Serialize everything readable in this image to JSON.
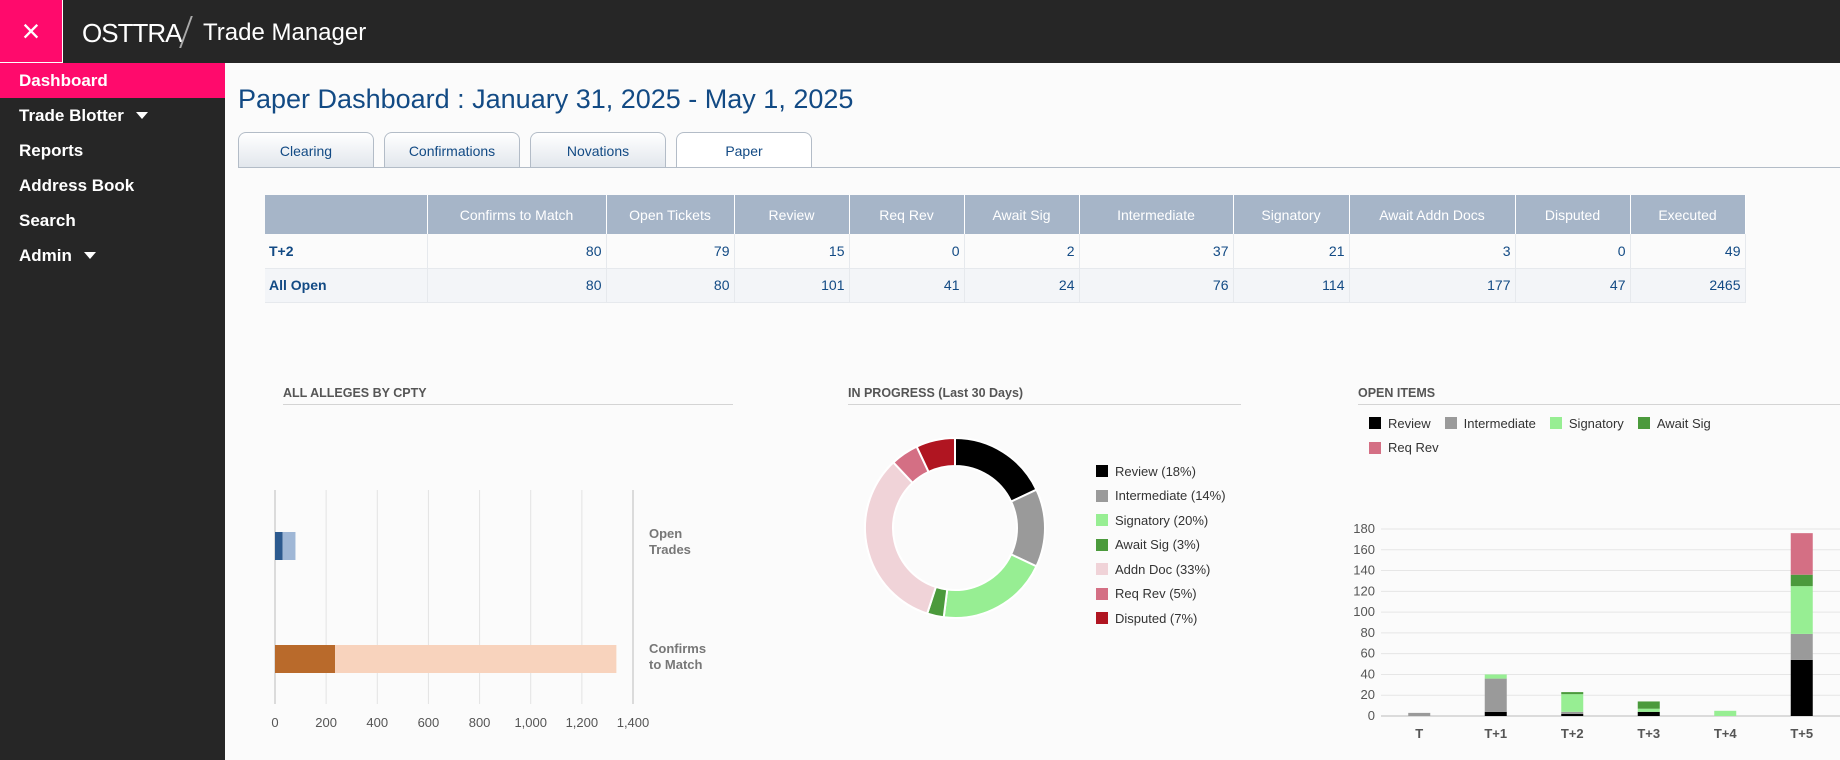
{
  "header": {
    "close_icon": "×",
    "logo_text": "OSTTRA",
    "app_title": "Trade Manager"
  },
  "sidebar": {
    "items": [
      {
        "label": "Dashboard",
        "active": true
      },
      {
        "label": "Trade Blotter",
        "has_caret": true
      },
      {
        "label": "Reports"
      },
      {
        "label": "Address Book"
      },
      {
        "label": "Search"
      },
      {
        "label": "Admin",
        "has_caret": true
      }
    ]
  },
  "page": {
    "title": "Paper Dashboard : January 31, 2025 - May 1, 2025",
    "tabs": [
      "Clearing",
      "Confirmations",
      "Novations",
      "Paper"
    ],
    "active_tab": "Paper"
  },
  "stats_table": {
    "columns": [
      "",
      "Confirms to Match",
      "Open Tickets",
      "Review",
      "Req Rev",
      "Await Sig",
      "Intermediate",
      "Signatory",
      "Await Addn Docs",
      "Disputed",
      "Executed"
    ],
    "rows": [
      {
        "label": "T+2",
        "values": [
          "80",
          "79",
          "15",
          "0",
          "2",
          "37",
          "21",
          "3",
          "0",
          "49"
        ]
      },
      {
        "label": "All Open",
        "values": [
          "80",
          "80",
          "101",
          "41",
          "24",
          "76",
          "114",
          "177",
          "47",
          "2465"
        ]
      }
    ]
  },
  "colors": {
    "brand_pink": "#ff0a6c",
    "nav_dark": "#262626",
    "title_blue": "#124a84",
    "header_gray_blue": "#a6b5c8"
  },
  "chart_data": [
    {
      "type": "bar",
      "orientation": "horizontal",
      "stacked": true,
      "title": "ALL ALLEGES BY CPTY",
      "categories": [
        "Open\nTrades",
        "Confirms\nto Match"
      ],
      "series": [
        {
          "color": "#2c5a8f",
          "values": [
            30,
            235
          ]
        },
        {
          "color": "#9fb7d6",
          "values": [
            50,
            1100
          ]
        }
      ],
      "category_colors": [
        [
          "#2c5a8f",
          "#9fb7d6"
        ],
        [
          "#b96a2b",
          "#f8d3bd"
        ]
      ],
      "totals": [
        80,
        1335
      ],
      "xlim": [
        0,
        1400
      ],
      "xticks": [
        "0",
        "200",
        "400",
        "600",
        "800",
        "1,000",
        "1,200",
        "1,400"
      ]
    },
    {
      "type": "pie",
      "donut": true,
      "title": "IN PROGRESS (Last 30 Days)",
      "slices": [
        {
          "label": "Review (18%)",
          "value": 18,
          "color": "#000000"
        },
        {
          "label": "Intermediate (14%)",
          "value": 14,
          "color": "#9a9a9a"
        },
        {
          "label": "Signatory (20%)",
          "value": 20,
          "color": "#97ee93"
        },
        {
          "label": "Await Sig (3%)",
          "value": 3,
          "color": "#4b9a3c"
        },
        {
          "label": "Addn Doc (33%)",
          "value": 33,
          "color": "#f0d3d8"
        },
        {
          "label": "Req Rev (5%)",
          "value": 5,
          "color": "#d46f84"
        },
        {
          "label": "Disputed (7%)",
          "value": 7,
          "color": "#b01521"
        }
      ]
    },
    {
      "type": "bar",
      "stacked": true,
      "title": "OPEN ITEMS",
      "categories": [
        "T",
        "T+1",
        "T+2",
        "T+3",
        "T+4",
        "T+5"
      ],
      "series": [
        {
          "name": "Review",
          "color": "#000000",
          "values": [
            0,
            4,
            2,
            4,
            0,
            54
          ]
        },
        {
          "name": "Intermediate",
          "color": "#9a9a9a",
          "values": [
            3,
            32,
            2,
            0,
            0,
            25
          ]
        },
        {
          "name": "Signatory",
          "color": "#97ee93",
          "values": [
            0,
            4,
            17,
            3,
            5,
            46
          ]
        },
        {
          "name": "Await Sig",
          "color": "#4b9a3c",
          "values": [
            0,
            0,
            2,
            7,
            0,
            11
          ]
        },
        {
          "name": "Req Rev",
          "color": "#d46f84",
          "values": [
            0,
            0,
            0,
            0,
            0,
            40
          ]
        }
      ],
      "ylim": [
        0,
        180
      ],
      "yticks": [
        "0",
        "20",
        "40",
        "60",
        "80",
        "100",
        "120",
        "140",
        "160",
        "180"
      ]
    }
  ]
}
